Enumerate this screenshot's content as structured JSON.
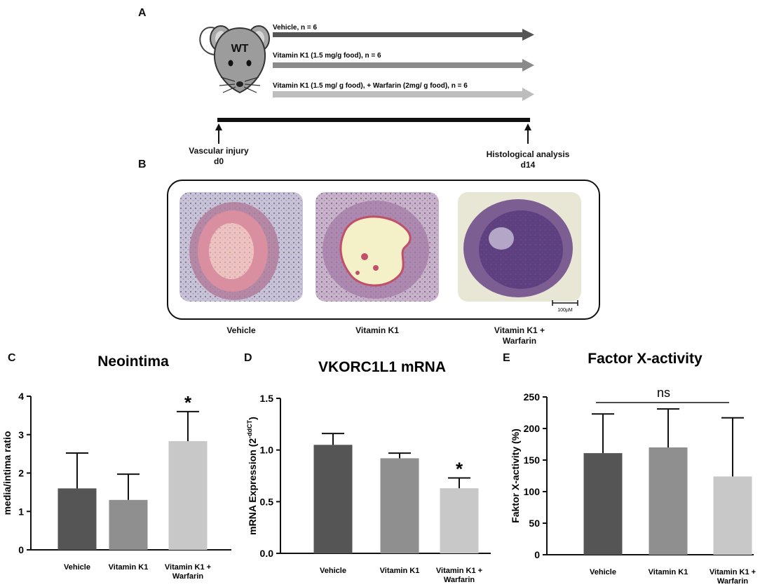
{
  "panels": {
    "a": "A",
    "b": "B",
    "c": "C",
    "d": "D",
    "e": "E"
  },
  "mouse": {
    "label": "WT"
  },
  "groups": [
    {
      "label": "Vehicle, n = 6",
      "color": "#555555"
    },
    {
      "label": "Vitamin K1 (1.5 mg/g food), n = 6",
      "color": "#8a8a8a"
    },
    {
      "label": "Vitamin K1 (1.5 mg/ g food), + Warfarin (2mg/ g food), n = 6",
      "color": "#bdbdbd"
    }
  ],
  "timeline": {
    "start_line1": "Vascular injury",
    "start_line2": "d0",
    "end_line1": "Histological analysis",
    "end_line2": "d14"
  },
  "histology": {
    "scale_bar": "100µM",
    "labels": [
      "Vehicle",
      "Vitamin K1",
      "Vitamin K1 +\nWarfarin"
    ]
  },
  "chart_data": [
    {
      "type": "bar",
      "title": "Neointima",
      "ylabel": "media/intima ratio",
      "categories": [
        "Vehicle",
        "Vitamin K1",
        "Vitamin K1 +\nWarfarin"
      ],
      "values": [
        1.6,
        1.3,
        2.83
      ],
      "errors": [
        0.92,
        0.67,
        0.77
      ],
      "ylim": [
        0,
        4
      ],
      "yticks": [
        "0",
        "1",
        "2",
        "3",
        "4"
      ],
      "significance": [
        "",
        "",
        "*"
      ],
      "colors": [
        "#555555",
        "#8f8f8f",
        "#c8c8c8"
      ]
    },
    {
      "type": "bar",
      "title": "VKORC1L1 mRNA",
      "ylabel": "mRNA Expression (2",
      "ylabel_sup": "-ddCT",
      "ylabel_end": ")",
      "categories": [
        "Vehicle",
        "Vitamin K1",
        "Vitamin K1 +\nWarfarin"
      ],
      "values": [
        1.05,
        0.92,
        0.63
      ],
      "errors": [
        0.11,
        0.05,
        0.1
      ],
      "ylim": [
        0,
        1.5
      ],
      "yticks": [
        "0.0",
        "0.5",
        "1.0",
        "1.5"
      ],
      "significance": [
        "",
        "",
        "*"
      ],
      "colors": [
        "#555555",
        "#8f8f8f",
        "#c8c8c8"
      ]
    },
    {
      "type": "bar",
      "title": "Factor X-activity",
      "ylabel": "Faktor X-activity (%)",
      "categories": [
        "Vehicle",
        "Vitamin K1",
        "Vitamin K1 +\nWarfarin"
      ],
      "values": [
        161,
        170,
        124
      ],
      "errors": [
        62,
        61,
        93
      ],
      "ylim": [
        0,
        250
      ],
      "yticks": [
        "0",
        "50",
        "100",
        "150",
        "200",
        "250"
      ],
      "bracket_label": "ns",
      "colors": [
        "#555555",
        "#8f8f8f",
        "#c8c8c8"
      ]
    }
  ]
}
